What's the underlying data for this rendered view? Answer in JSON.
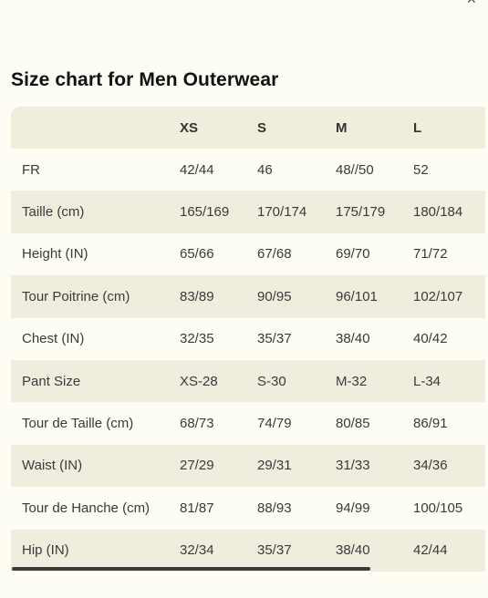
{
  "title": "Size chart for Men Outerwear",
  "header": {
    "corner": "",
    "sizes": [
      "XS",
      "S",
      "M",
      "L"
    ]
  },
  "rows": [
    {
      "label": "FR",
      "values": [
        "42/44",
        "46",
        "48//50",
        "52"
      ]
    },
    {
      "label": "Taille (cm)",
      "values": [
        "165/169",
        "170/174",
        "175/179",
        "180/184"
      ]
    },
    {
      "label": "Height (IN)",
      "values": [
        "65/66",
        "67/68",
        "69/70",
        "71/72"
      ]
    },
    {
      "label": "Tour Poitrine (cm)",
      "values": [
        "83/89",
        "90/95",
        "96/101",
        "102/107"
      ]
    },
    {
      "label": "Chest (IN)",
      "values": [
        "32/35",
        "35/37",
        "38/40",
        "40/42"
      ]
    },
    {
      "label": "Pant Size",
      "values": [
        "XS-28",
        "S-30",
        "M-32",
        "L-34"
      ]
    },
    {
      "label": "Tour de Taille (cm)",
      "values": [
        "68/73",
        "74/79",
        "80/85",
        "86/91"
      ]
    },
    {
      "label": "Waist (IN)",
      "values": [
        "27/29",
        "29/31",
        "31/33",
        "34/36"
      ]
    },
    {
      "label": "Tour de Hanche (cm)",
      "values": [
        "81/87",
        "88/93",
        "94/99",
        "100/105"
      ]
    },
    {
      "label": "Hip (IN)",
      "values": [
        "32/34",
        "35/37",
        "38/40",
        "42/44"
      ]
    }
  ],
  "icons": {
    "close": "close-icon"
  },
  "colors": {
    "background": "#fdfdf4",
    "row_shade": "#f0eddf",
    "header_bg": "#f0eddc",
    "text": "#3a3a3a",
    "scrollbar": "#3c3c3c"
  }
}
